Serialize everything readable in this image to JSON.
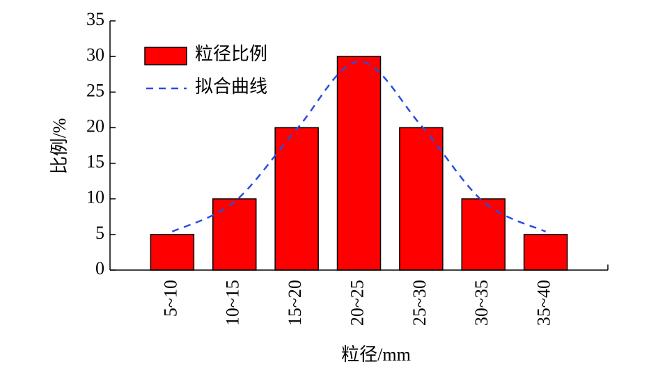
{
  "chart_data": {
    "type": "bar",
    "xlabel": "粒径/mm",
    "ylabel": "比例/%",
    "categories": [
      "5~10",
      "10~15",
      "15~20",
      "20~25",
      "25~30",
      "30~35",
      "35~40"
    ],
    "series": [
      {
        "name": "粒径比例",
        "type": "bar",
        "color": "#ff0000",
        "values": [
          5,
          10,
          20,
          30,
          20,
          10,
          5
        ]
      },
      {
        "name": "拟合曲线",
        "type": "line",
        "color": "#2a4de0",
        "values": [
          5.4,
          9.6,
          19.8,
          29.3,
          20.3,
          9.6,
          5.4
        ]
      }
    ],
    "ylim": [
      0,
      35
    ],
    "yticks": [
      0,
      5,
      10,
      15,
      20,
      25,
      30,
      35
    ],
    "legend": "upper-left",
    "grid": false
  }
}
